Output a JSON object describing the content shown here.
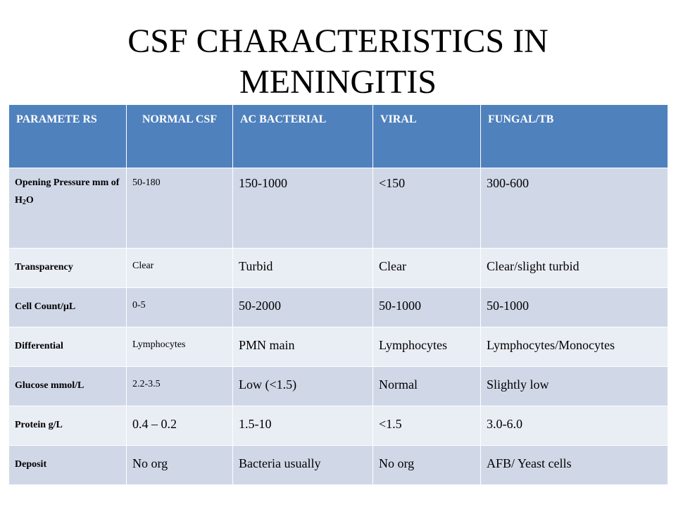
{
  "title": "CSF CHARACTERISTICS IN MENINGITIS",
  "table": {
    "headers": {
      "parameters": "PARAMETE RS",
      "normal": "NORMAL CSF",
      "bacterial": "AC BACTERIAL",
      "viral": "VIRAL",
      "fungal": "FUNGAL/TB"
    },
    "rows": [
      {
        "param_prefix": "Opening Pressure mm of H",
        "param_sub1": "2",
        "param_suffix": "O",
        "normal": "50-180",
        "bacterial": "150-1000",
        "viral": "<150",
        "fungal": "300-600"
      },
      {
        "param": "Transparency",
        "normal": "Clear",
        "bacterial": "Turbid",
        "viral": "Clear",
        "fungal": "Clear/slight turbid"
      },
      {
        "param": "Cell Count/µL",
        "normal": "0-5",
        "bacterial": "50-2000",
        "viral": "50-1000",
        "fungal": "50-1000"
      },
      {
        "param": "Differential",
        "normal": "Lymphocytes",
        "bacterial": "PMN main",
        "viral": "Lymphocytes",
        "fungal": "Lymphocytes/Monocytes"
      },
      {
        "param": "Glucose mmol/L",
        "normal": "2.2-3.5",
        "bacterial": "Low (<1.5)",
        "viral": "Normal",
        "fungal": "Slightly low"
      },
      {
        "param": "Protein g/L",
        "normal": "0.4 – 0.2",
        "bacterial": "1.5-10",
        "viral": "<1.5",
        "fungal": "3.0-6.0"
      },
      {
        "param": "Deposit",
        "normal": "No org",
        "bacterial": "Bacteria usually",
        "viral": "No org",
        "fungal": "AFB/ Yeast cells"
      }
    ]
  },
  "colors": {
    "header_bg": "#4f81bd",
    "row_odd_bg": "#d0d8e8",
    "row_even_bg": "#e9edf4"
  }
}
